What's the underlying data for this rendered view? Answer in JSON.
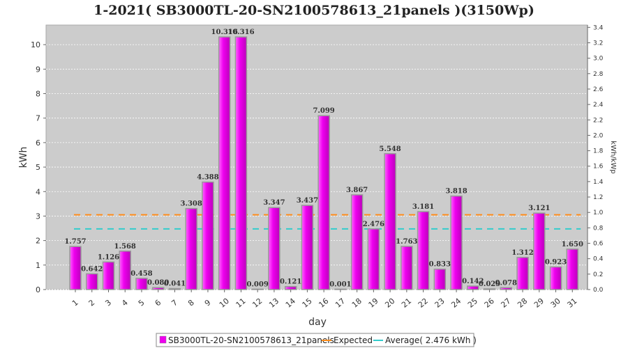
{
  "chart_data": {
    "type": "bar",
    "title": "1-2021( SB3000TL-20-SN2100578613_21panels )(3150Wp)",
    "xlabel": "day",
    "ylabel": "kWh",
    "ylabel_right": "kWh/kWp",
    "ylim": [
      0,
      10.8
    ],
    "ylim_right": [
      0,
      3.43
    ],
    "yticks": [
      "0",
      "1",
      "2",
      "3",
      "4",
      "5",
      "6",
      "7",
      "8",
      "9",
      "10"
    ],
    "yticks_right": [
      "0.0",
      "0.2",
      "0.4",
      "0.6",
      "0.8",
      "1.0",
      "1.2",
      "1.4",
      "1.6",
      "1.8",
      "2.0",
      "2.2",
      "2.4",
      "2.6",
      "2.8",
      "3.0",
      "3.2",
      "3.4"
    ],
    "categories": [
      "1",
      "2",
      "3",
      "4",
      "5",
      "6",
      "7",
      "8",
      "9",
      "10",
      "11",
      "12",
      "13",
      "14",
      "15",
      "16",
      "17",
      "18",
      "19",
      "20",
      "21",
      "22",
      "23",
      "24",
      "25",
      "26",
      "27",
      "28",
      "29",
      "30",
      "31"
    ],
    "series": [
      {
        "name": "SB3000TL-20-SN2100578613_21panels",
        "color": "#ee00ee",
        "values": [
          1.757,
          0.642,
          1.126,
          1.568,
          0.458,
          0.08,
          0.041,
          3.308,
          4.388,
          10.316,
          10.316,
          0.009,
          3.347,
          0.121,
          3.437,
          7.099,
          0.001,
          3.867,
          2.476,
          5.548,
          1.763,
          3.181,
          0.833,
          3.818,
          0.142,
          0.029,
          0.078,
          1.312,
          3.121,
          0.923,
          1.65
        ],
        "labels": [
          "1.757",
          "0.642",
          "1.126",
          "1.568",
          "0.458",
          "0.080",
          "0.041",
          "3.308",
          "4.388",
          "10.316",
          "10.316",
          "0.009",
          "3.347",
          "0.121",
          "3.437",
          "7.099",
          "0.001",
          "3.867",
          "2.476",
          "5.548",
          "1.763",
          "3.181",
          "0.833",
          "3.818",
          "0.142",
          "0.029",
          "0.078",
          "1.312",
          "3.121",
          "0.923",
          "1.650"
        ]
      }
    ],
    "expected": {
      "name": "Expected",
      "value": 3.05,
      "color": "#ff8c1a"
    },
    "average": {
      "name": "Average( 2.476 kWh )",
      "value": 2.476,
      "color": "#33cccc"
    },
    "grid": true,
    "legend_position": "bottom",
    "plot_background": "#cccccc"
  }
}
